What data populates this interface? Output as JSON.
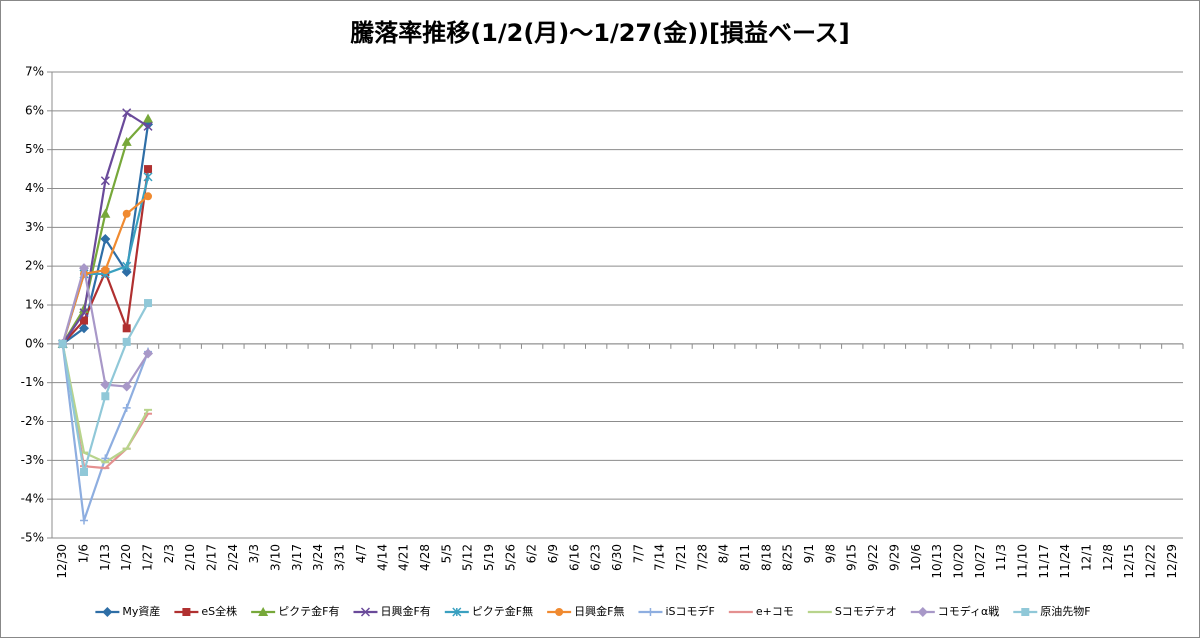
{
  "chart_data": {
    "type": "line",
    "title": "騰落率推移(1/2(月)～1/27(金))[損益ベース]",
    "categories": [
      "12/30",
      "1/6",
      "1/13",
      "1/20",
      "1/27",
      "2/3",
      "2/10",
      "2/17",
      "2/24",
      "3/3",
      "3/10",
      "3/17",
      "3/24",
      "3/31",
      "4/7",
      "4/14",
      "4/21",
      "4/28",
      "5/5",
      "5/12",
      "5/19",
      "5/26",
      "6/2",
      "6/9",
      "6/16",
      "6/23",
      "6/30",
      "7/7",
      "7/14",
      "7/21",
      "7/28",
      "8/4",
      "8/11",
      "8/18",
      "8/25",
      "9/1",
      "9/8",
      "9/15",
      "9/22",
      "9/29",
      "10/6",
      "10/13",
      "10/20",
      "10/27",
      "11/3",
      "11/10",
      "11/17",
      "11/24",
      "12/1",
      "12/8",
      "12/15",
      "12/22",
      "12/29"
    ],
    "ylim": [
      -5,
      7
    ],
    "yticks": [
      {
        "value": -5,
        "label": "-5%"
      },
      {
        "value": -4,
        "label": "-4%"
      },
      {
        "value": -3,
        "label": "-3%"
      },
      {
        "value": -2,
        "label": "-2%"
      },
      {
        "value": -1,
        "label": "-1%"
      },
      {
        "value": 0,
        "label": "0%"
      },
      {
        "value": 1,
        "label": "1%"
      },
      {
        "value": 2,
        "label": "2%"
      },
      {
        "value": 3,
        "label": "3%"
      },
      {
        "value": 4,
        "label": "4%"
      },
      {
        "value": 5,
        "label": "5%"
      },
      {
        "value": 6,
        "label": "6%"
      },
      {
        "value": 7,
        "label": "7%"
      }
    ],
    "grid": true,
    "legend": "bottom",
    "series": [
      {
        "name": "My資産",
        "color": "#2e6ea6",
        "marker": "diamond",
        "values": [
          0,
          0.4,
          2.7,
          1.85,
          5.65,
          null,
          null,
          null,
          null,
          null,
          null,
          null,
          null,
          null,
          null,
          null,
          null,
          null,
          null,
          null,
          null,
          null,
          null,
          null,
          null,
          null,
          null,
          null,
          null,
          null,
          null,
          null,
          null,
          null,
          null,
          null,
          null,
          null,
          null,
          null,
          null,
          null,
          null,
          null,
          null,
          null,
          null,
          null,
          null,
          null,
          null,
          null,
          null
        ]
      },
      {
        "name": "eS全株",
        "color": "#b03030",
        "marker": "square",
        "values": [
          0,
          0.6,
          1.85,
          0.4,
          4.5,
          null,
          null,
          null,
          null,
          null,
          null,
          null,
          null,
          null,
          null,
          null,
          null,
          null,
          null,
          null,
          null,
          null,
          null,
          null,
          null,
          null,
          null,
          null,
          null,
          null,
          null,
          null,
          null,
          null,
          null,
          null,
          null,
          null,
          null,
          null,
          null,
          null,
          null,
          null,
          null,
          null,
          null,
          null,
          null,
          null,
          null,
          null,
          null
        ]
      },
      {
        "name": "ピクテ金F有",
        "color": "#77a83a",
        "marker": "triangle",
        "values": [
          0,
          0.9,
          3.35,
          5.2,
          5.8,
          null,
          null,
          null,
          null,
          null,
          null,
          null,
          null,
          null,
          null,
          null,
          null,
          null,
          null,
          null,
          null,
          null,
          null,
          null,
          null,
          null,
          null,
          null,
          null,
          null,
          null,
          null,
          null,
          null,
          null,
          null,
          null,
          null,
          null,
          null,
          null,
          null,
          null,
          null,
          null,
          null,
          null,
          null,
          null,
          null,
          null,
          null,
          null
        ]
      },
      {
        "name": "日興金F有",
        "color": "#6a4a9a",
        "marker": "x",
        "values": [
          0,
          0.8,
          4.2,
          5.95,
          5.6,
          null,
          null,
          null,
          null,
          null,
          null,
          null,
          null,
          null,
          null,
          null,
          null,
          null,
          null,
          null,
          null,
          null,
          null,
          null,
          null,
          null,
          null,
          null,
          null,
          null,
          null,
          null,
          null,
          null,
          null,
          null,
          null,
          null,
          null,
          null,
          null,
          null,
          null,
          null,
          null,
          null,
          null,
          null,
          null,
          null,
          null,
          null,
          null
        ]
      },
      {
        "name": "ピクテ金F無",
        "color": "#3aa0c0",
        "marker": "star",
        "values": [
          0,
          1.8,
          1.8,
          2.0,
          4.3,
          null,
          null,
          null,
          null,
          null,
          null,
          null,
          null,
          null,
          null,
          null,
          null,
          null,
          null,
          null,
          null,
          null,
          null,
          null,
          null,
          null,
          null,
          null,
          null,
          null,
          null,
          null,
          null,
          null,
          null,
          null,
          null,
          null,
          null,
          null,
          null,
          null,
          null,
          null,
          null,
          null,
          null,
          null,
          null,
          null,
          null,
          null,
          null
        ]
      },
      {
        "name": "日興金F無",
        "color": "#f08a30",
        "marker": "circle",
        "values": [
          0,
          1.8,
          1.9,
          3.35,
          3.8,
          null,
          null,
          null,
          null,
          null,
          null,
          null,
          null,
          null,
          null,
          null,
          null,
          null,
          null,
          null,
          null,
          null,
          null,
          null,
          null,
          null,
          null,
          null,
          null,
          null,
          null,
          null,
          null,
          null,
          null,
          null,
          null,
          null,
          null,
          null,
          null,
          null,
          null,
          null,
          null,
          null,
          null,
          null,
          null,
          null,
          null,
          null,
          null
        ]
      },
      {
        "name": "iSコモデF",
        "color": "#8eaee0",
        "marker": "plus",
        "values": [
          0,
          -4.55,
          -2.95,
          -1.65,
          -0.2,
          null,
          null,
          null,
          null,
          null,
          null,
          null,
          null,
          null,
          null,
          null,
          null,
          null,
          null,
          null,
          null,
          null,
          null,
          null,
          null,
          null,
          null,
          null,
          null,
          null,
          null,
          null,
          null,
          null,
          null,
          null,
          null,
          null,
          null,
          null,
          null,
          null,
          null,
          null,
          null,
          null,
          null,
          null,
          null,
          null,
          null,
          null,
          null
        ]
      },
      {
        "name": "e+コモ",
        "color": "#e49090",
        "marker": "dash",
        "values": [
          0,
          -3.15,
          -3.2,
          -2.7,
          -1.8,
          null,
          null,
          null,
          null,
          null,
          null,
          null,
          null,
          null,
          null,
          null,
          null,
          null,
          null,
          null,
          null,
          null,
          null,
          null,
          null,
          null,
          null,
          null,
          null,
          null,
          null,
          null,
          null,
          null,
          null,
          null,
          null,
          null,
          null,
          null,
          null,
          null,
          null,
          null,
          null,
          null,
          null,
          null,
          null,
          null,
          null,
          null,
          null
        ]
      },
      {
        "name": "Sコモデテオ",
        "color": "#b8d48c",
        "marker": "dash",
        "values": [
          0,
          -2.8,
          -3.05,
          -2.7,
          -1.7,
          null,
          null,
          null,
          null,
          null,
          null,
          null,
          null,
          null,
          null,
          null,
          null,
          null,
          null,
          null,
          null,
          null,
          null,
          null,
          null,
          null,
          null,
          null,
          null,
          null,
          null,
          null,
          null,
          null,
          null,
          null,
          null,
          null,
          null,
          null,
          null,
          null,
          null,
          null,
          null,
          null,
          null,
          null,
          null,
          null,
          null,
          null,
          null
        ]
      },
      {
        "name": "コモディα戦",
        "color": "#a898c8",
        "marker": "diamond",
        "values": [
          0,
          1.95,
          -1.05,
          -1.1,
          -0.25,
          null,
          null,
          null,
          null,
          null,
          null,
          null,
          null,
          null,
          null,
          null,
          null,
          null,
          null,
          null,
          null,
          null,
          null,
          null,
          null,
          null,
          null,
          null,
          null,
          null,
          null,
          null,
          null,
          null,
          null,
          null,
          null,
          null,
          null,
          null,
          null,
          null,
          null,
          null,
          null,
          null,
          null,
          null,
          null,
          null,
          null,
          null,
          null
        ]
      },
      {
        "name": "原油先物F",
        "color": "#90c8d8",
        "marker": "square",
        "values": [
          0,
          -3.3,
          -1.35,
          0.05,
          1.05,
          null,
          null,
          null,
          null,
          null,
          null,
          null,
          null,
          null,
          null,
          null,
          null,
          null,
          null,
          null,
          null,
          null,
          null,
          null,
          null,
          null,
          null,
          null,
          null,
          null,
          null,
          null,
          null,
          null,
          null,
          null,
          null,
          null,
          null,
          null,
          null,
          null,
          null,
          null,
          null,
          null,
          null,
          null,
          null,
          null,
          null,
          null,
          null
        ]
      }
    ]
  }
}
